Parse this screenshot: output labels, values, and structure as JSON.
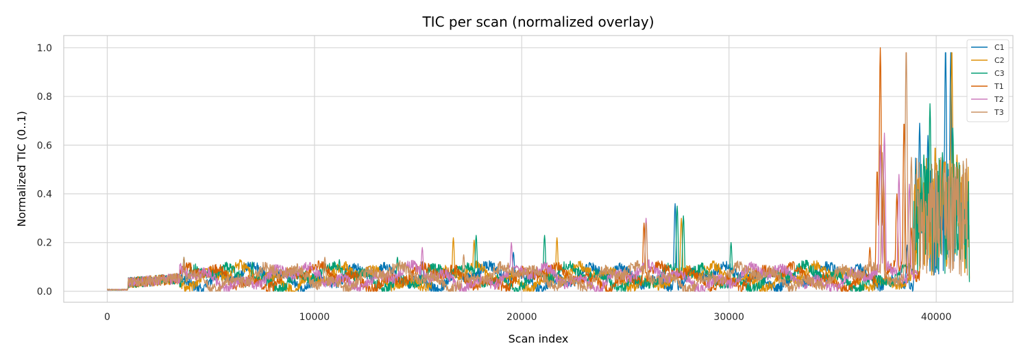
{
  "chart_data": {
    "type": "line",
    "title": "TIC per scan (normalized overlay)",
    "xlabel": "Scan index",
    "ylabel": "Normalized TIC (0..1)",
    "xlim": [
      -2100,
      43700
    ],
    "ylim": [
      -0.045,
      1.05
    ],
    "x_ticks": [
      {
        "value": 0,
        "label": "0"
      },
      {
        "value": 10000,
        "label": "10000"
      },
      {
        "value": 20000,
        "label": "20000"
      },
      {
        "value": 30000,
        "label": "30000"
      },
      {
        "value": 40000,
        "label": "40000"
      }
    ],
    "y_ticks": [
      {
        "value": 0.0,
        "label": "0.0"
      },
      {
        "value": 0.2,
        "label": "0.2"
      },
      {
        "value": 0.4,
        "label": "0.4"
      },
      {
        "value": 0.6,
        "label": "0.6"
      },
      {
        "value": 0.8,
        "label": "0.8"
      },
      {
        "value": 1.0,
        "label": "1.0"
      }
    ],
    "grid": true,
    "legend_position": "top-right",
    "series": [
      {
        "name": "C1",
        "color": "#0173b2",
        "max_scan": 41100,
        "peaks": [
          [
            13500,
            0.11
          ],
          [
            15200,
            0.12
          ],
          [
            19600,
            0.16
          ],
          [
            27400,
            0.36
          ],
          [
            38600,
            0.19
          ],
          [
            39200,
            0.69
          ],
          [
            39600,
            0.64
          ],
          [
            40200,
            0.25
          ],
          [
            40450,
            1.0
          ],
          [
            40700,
            0.98
          ],
          [
            40950,
            0.48
          ],
          [
            41050,
            0.3
          ]
        ]
      },
      {
        "name": "C2",
        "color": "#de8f05",
        "max_scan": 41600,
        "peaks": [
          [
            6400,
            0.13
          ],
          [
            16700,
            0.22
          ],
          [
            17700,
            0.21
          ],
          [
            21700,
            0.22
          ],
          [
            27700,
            0.3
          ],
          [
            39300,
            0.37
          ],
          [
            39950,
            0.6
          ],
          [
            40400,
            0.53
          ],
          [
            40750,
            1.0
          ],
          [
            41000,
            0.56
          ],
          [
            41300,
            0.24
          ],
          [
            41500,
            0.38
          ]
        ]
      },
      {
        "name": "C3",
        "color": "#029e73",
        "max_scan": 41600,
        "peaks": [
          [
            3700,
            0.14
          ],
          [
            7000,
            0.12
          ],
          [
            11200,
            0.13
          ],
          [
            14000,
            0.14
          ],
          [
            17800,
            0.23
          ],
          [
            21100,
            0.23
          ],
          [
            27500,
            0.35
          ],
          [
            27800,
            0.31
          ],
          [
            30100,
            0.2
          ],
          [
            39400,
            0.56
          ],
          [
            39700,
            0.77
          ],
          [
            40300,
            0.57
          ],
          [
            40800,
            0.67
          ],
          [
            41300,
            0.4
          ]
        ]
      },
      {
        "name": "T1",
        "color": "#d55e00",
        "max_scan": 39200,
        "peaks": [
          [
            25900,
            0.28
          ],
          [
            36800,
            0.18
          ],
          [
            37150,
            0.5
          ],
          [
            37300,
            1.0
          ],
          [
            37450,
            0.48
          ],
          [
            38100,
            0.4
          ],
          [
            38450,
            0.7
          ],
          [
            38800,
            0.26
          ]
        ]
      },
      {
        "name": "T2",
        "color": "#cc78bc",
        "max_scan": 39100,
        "peaks": [
          [
            15200,
            0.18
          ],
          [
            19500,
            0.2
          ],
          [
            26000,
            0.3
          ],
          [
            37300,
            0.6
          ],
          [
            37500,
            0.65
          ],
          [
            38200,
            0.48
          ],
          [
            38700,
            0.44
          ]
        ]
      },
      {
        "name": "T3",
        "color": "#ca9161",
        "max_scan": 41500,
        "peaks": [
          [
            3700,
            0.14
          ],
          [
            10500,
            0.14
          ],
          [
            17200,
            0.15
          ],
          [
            26000,
            0.28
          ],
          [
            37400,
            0.57
          ],
          [
            38550,
            1.0
          ],
          [
            38800,
            0.55
          ],
          [
            39100,
            0.38
          ],
          [
            40500,
            0.3
          ],
          [
            41400,
            0.3
          ]
        ]
      }
    ]
  }
}
